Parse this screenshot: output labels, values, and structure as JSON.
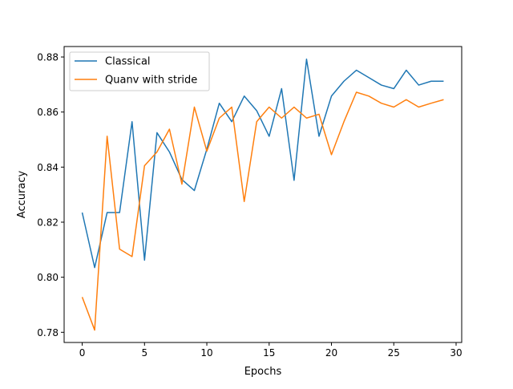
{
  "chart_data": {
    "type": "line",
    "title": "",
    "xlabel": "Epochs",
    "ylabel": "Accuracy",
    "xlim": [
      -1.45,
      30.45
    ],
    "ylim": [
      0.7763,
      0.8838
    ],
    "xticks": [
      0,
      5,
      10,
      15,
      20,
      25,
      30
    ],
    "yticks": [
      0.78,
      0.8,
      0.82,
      0.84,
      0.86,
      0.88
    ],
    "xtick_labels": [
      "0",
      "5",
      "10",
      "15",
      "20",
      "25",
      "30"
    ],
    "ytick_labels": [
      "0.78",
      "0.80",
      "0.82",
      "0.84",
      "0.86",
      "0.88"
    ],
    "grid": false,
    "legend": "top-left",
    "x": [
      0,
      1,
      2,
      3,
      4,
      5,
      6,
      7,
      8,
      9,
      10,
      11,
      12,
      13,
      14,
      15,
      16,
      17,
      18,
      19,
      20,
      21,
      22,
      23,
      24,
      25,
      26,
      27,
      28,
      29
    ],
    "series": [
      {
        "name": "Classical",
        "color": "#1f77b4",
        "values": [
          0.8235,
          0.8035,
          0.8235,
          0.8235,
          0.8565,
          0.8062,
          0.8525,
          0.8455,
          0.8355,
          0.8315,
          0.8465,
          0.8632,
          0.8565,
          0.8658,
          0.8605,
          0.8512,
          0.8685,
          0.8352,
          0.8792,
          0.8512,
          0.8658,
          0.8712,
          0.8752,
          0.8725,
          0.8698,
          0.8685,
          0.8752,
          0.8698,
          0.8712,
          0.8712
        ]
      },
      {
        "name": "Quanv with stride",
        "color": "#ff7f0e",
        "values": [
          0.7928,
          0.7808,
          0.8512,
          0.8102,
          0.8075,
          0.8405,
          0.8455,
          0.8538,
          0.8338,
          0.8618,
          0.8458,
          0.8578,
          0.8618,
          0.8275,
          0.8565,
          0.8618,
          0.8578,
          0.8618,
          0.8578,
          0.8592,
          0.8445,
          0.8565,
          0.8672,
          0.8658,
          0.8632,
          0.8618,
          0.8645,
          0.8618,
          0.8632,
          0.8645
        ]
      }
    ]
  }
}
